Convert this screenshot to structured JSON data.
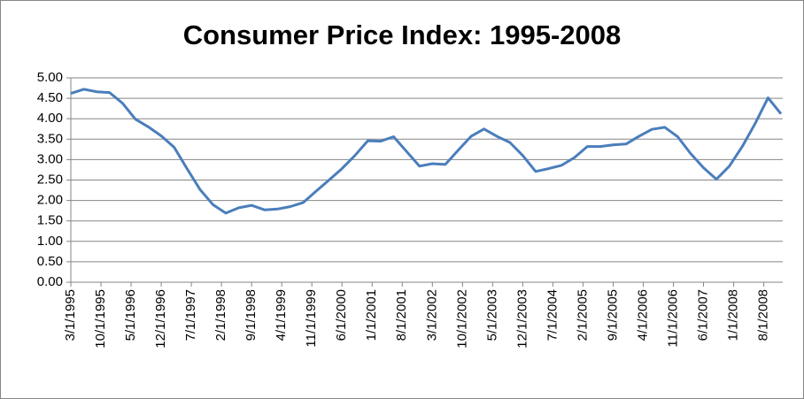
{
  "chart_data": {
    "type": "line",
    "title": "Consumer Price Index: 1995-2008",
    "x": [
      "1995-03",
      "1995-06",
      "1995-09",
      "1995-12",
      "1996-03",
      "1996-06",
      "1996-09",
      "1996-12",
      "1997-03",
      "1997-06",
      "1997-09",
      "1997-12",
      "1998-03",
      "1998-06",
      "1998-09",
      "1998-12",
      "1999-03",
      "1999-06",
      "1999-09",
      "1999-12",
      "2000-03",
      "2000-06",
      "2000-09",
      "2000-12",
      "2001-03",
      "2001-06",
      "2001-09",
      "2001-12",
      "2002-03",
      "2002-06",
      "2002-09",
      "2002-12",
      "2003-03",
      "2003-06",
      "2003-09",
      "2003-12",
      "2004-03",
      "2004-06",
      "2004-09",
      "2004-12",
      "2005-03",
      "2005-06",
      "2005-09",
      "2005-12",
      "2006-03",
      "2006-06",
      "2006-09",
      "2006-12",
      "2007-03",
      "2007-06",
      "2007-09",
      "2007-12",
      "2008-03",
      "2008-06",
      "2008-09",
      "2008-12"
    ],
    "series": [
      {
        "color": "#4a7ebb",
        "values": [
          4.62,
          4.72,
          4.66,
          4.64,
          4.38,
          3.99,
          3.8,
          3.58,
          3.3,
          2.78,
          2.27,
          1.9,
          1.69,
          1.82,
          1.88,
          1.77,
          1.79,
          1.85,
          1.95,
          2.23,
          2.5,
          2.78,
          3.1,
          3.46,
          3.45,
          3.56,
          3.2,
          2.84,
          2.9,
          2.88,
          3.23,
          3.57,
          3.75,
          3.57,
          3.42,
          3.1,
          2.71,
          2.78,
          2.86,
          3.05,
          3.32,
          3.32,
          3.36,
          3.38,
          3.57,
          3.74,
          3.79,
          3.56,
          3.15,
          2.8,
          2.52,
          2.84,
          3.32,
          3.88,
          4.51,
          4.12
        ]
      }
    ],
    "xlim": [
      "1995-03",
      "2008-12"
    ],
    "xticks": [
      "3/1/1995",
      "10/1/1995",
      "5/1/1996",
      "12/1/1996",
      "7/1/1997",
      "2/1/1998",
      "9/1/1998",
      "4/1/1999",
      "11/1/1999",
      "6/1/2000",
      "1/1/2001",
      "8/1/2001",
      "3/1/2002",
      "10/1/2002",
      "5/1/2003",
      "12/1/2003",
      "7/1/2004",
      "2/1/2005",
      "9/1/2005",
      "4/1/2006",
      "11/1/2006",
      "6/1/2007",
      "1/1/2008",
      "8/1/2008"
    ],
    "ylim": [
      0,
      5
    ],
    "yticks": [
      {
        "value": 0,
        "label": "0.00"
      },
      {
        "value": 0.5,
        "label": "0.50"
      },
      {
        "value": 1,
        "label": "1.00"
      },
      {
        "value": 1.5,
        "label": "1.50"
      },
      {
        "value": 2,
        "label": "2.00"
      },
      {
        "value": 2.5,
        "label": "2.50"
      },
      {
        "value": 3,
        "label": "3.00"
      },
      {
        "value": 3.5,
        "label": "3.50"
      },
      {
        "value": 4,
        "label": "4.00"
      },
      {
        "value": 4.5,
        "label": "4.50"
      },
      {
        "value": 5,
        "label": "5.00"
      }
    ],
    "grid": true
  }
}
